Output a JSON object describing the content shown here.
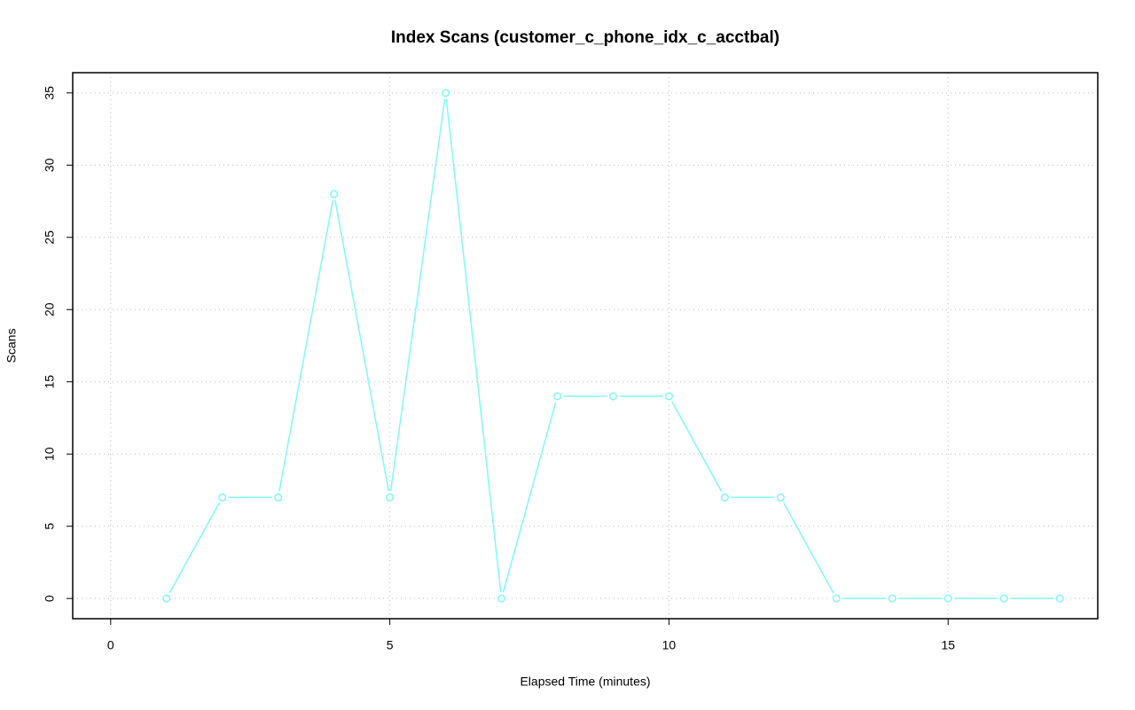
{
  "chart_data": {
    "type": "line",
    "title": "Index Scans (customer_c_phone_idx_c_acctbal)",
    "x_label": "Elapsed Time (minutes)",
    "y_label": "Scans",
    "x": [
      1,
      2,
      3,
      4,
      5,
      6,
      7,
      8,
      9,
      10,
      11,
      12,
      13,
      14,
      15,
      16,
      17
    ],
    "series": [
      {
        "name": "customer_c_phone_idx_c_acctbal",
        "color": "#80f8f8",
        "values": [
          0,
          7,
          7,
          28,
          7,
          35,
          0,
          14,
          14,
          14,
          7,
          7,
          0,
          0,
          0,
          0,
          0
        ]
      }
    ],
    "xlim": [
      -0.68,
      17.68
    ],
    "xticks": [
      0,
      5,
      10,
      15
    ],
    "ylim": [
      -1.4,
      36.4
    ],
    "yticks": [
      0,
      5,
      10,
      15,
      20,
      25,
      30,
      35
    ],
    "grid": true
  }
}
